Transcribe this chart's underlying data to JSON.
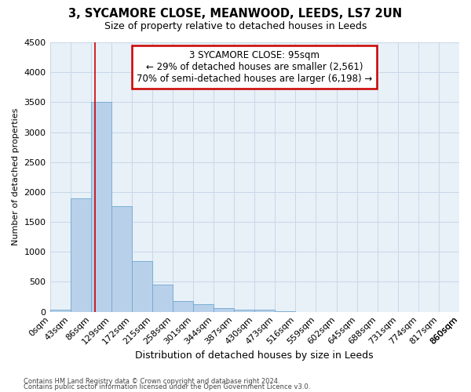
{
  "title": "3, SYCAMORE CLOSE, MEANWOOD, LEEDS, LS7 2UN",
  "subtitle": "Size of property relative to detached houses in Leeds",
  "xlabel": "Distribution of detached houses by size in Leeds",
  "ylabel": "Number of detached properties",
  "footnote1": "Contains HM Land Registry data © Crown copyright and database right 2024.",
  "footnote2": "Contains public sector information licensed under the Open Government Licence v3.0.",
  "bin_edges": [
    0,
    43,
    86,
    129,
    172,
    215,
    258,
    301,
    344,
    387,
    430,
    473,
    516,
    559,
    602,
    645,
    688,
    731,
    774,
    817,
    860
  ],
  "bar_labels": [
    "0sqm",
    "43sqm",
    "86sqm",
    "129sqm",
    "172sqm",
    "215sqm",
    "258sqm",
    "301sqm",
    "344sqm",
    "387sqm",
    "430sqm",
    "473sqm",
    "516sqm",
    "559sqm",
    "602sqm",
    "645sqm",
    "688sqm",
    "731sqm",
    "774sqm",
    "817sqm",
    "860sqm"
  ],
  "bar_values": [
    28,
    1900,
    3500,
    1760,
    850,
    450,
    175,
    120,
    60,
    40,
    28,
    10,
    0,
    0,
    0,
    0,
    0,
    0,
    0,
    0
  ],
  "bar_color": "#b8d0ea",
  "bar_edge_color": "#6fa8d0",
  "ylim": [
    0,
    4500
  ],
  "yticks": [
    0,
    500,
    1000,
    1500,
    2000,
    2500,
    3000,
    3500,
    4000,
    4500
  ],
  "property_sqm": 95,
  "annotation_line1": "3 SYCAMORE CLOSE: 95sqm",
  "annotation_line2": "← 29% of detached houses are smaller (2,561)",
  "annotation_line3": "70% of semi-detached houses are larger (6,198) →",
  "annotation_box_color": "#ffffff",
  "annotation_box_edge_color": "#cc0000",
  "vline_color": "#cc0000",
  "grid_color": "#c8d8e8",
  "bg_color": "#e8f0f8",
  "title_fontsize": 10.5,
  "subtitle_fontsize": 9,
  "xlabel_fontsize": 9,
  "ylabel_fontsize": 8,
  "tick_fontsize": 8,
  "annot_fontsize": 8.5,
  "footnote_fontsize": 6
}
